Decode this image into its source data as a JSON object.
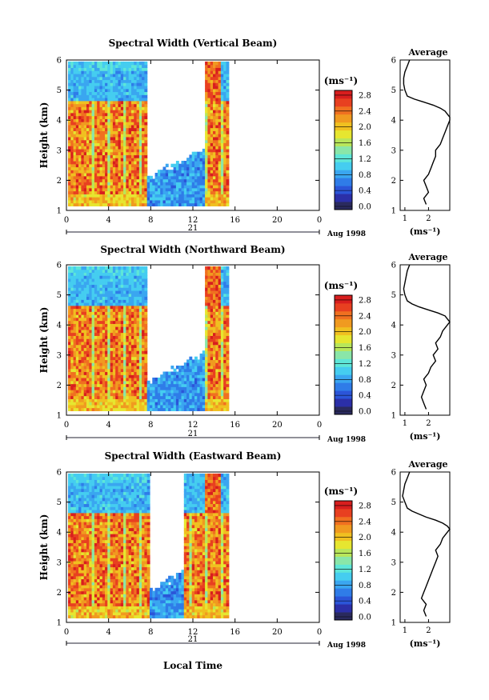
{
  "chart_data": [
    {
      "type": "heatmap",
      "title": "Spectral Width (Vertical Beam)",
      "ylabel": "Height (km)",
      "ylim": [
        1,
        6
      ],
      "yticks": [
        "1",
        "2",
        "3",
        "4",
        "5",
        "6"
      ],
      "xlim": [
        0,
        24
      ],
      "xticks": [
        "0",
        "4",
        "8",
        "12",
        "16",
        "20",
        "0"
      ],
      "date_day": "21",
      "date_label": "Aug 1998",
      "colorbar": {
        "unit": "(ms⁻¹)",
        "ticks": [
          "2.8",
          "2.4",
          "2.0",
          "1.6",
          "1.2",
          "0.8",
          "0.4",
          "0.0"
        ],
        "range": [
          0,
          3.0
        ]
      },
      "data_gap_hours": [
        7.6,
        13.0
      ],
      "data_end_hour": 15.3,
      "cloud_top_km": 4.6,
      "average_profile": {
        "title": "Average",
        "xlabel": "(ms⁻¹)",
        "xticks": [
          "1",
          "2"
        ],
        "xlim": [
          0.8,
          2.9
        ],
        "height_km": [
          1.2,
          1.4,
          1.6,
          1.8,
          2.0,
          2.2,
          2.4,
          2.6,
          2.8,
          3.0,
          3.2,
          3.4,
          3.6,
          3.8,
          4.0,
          4.1,
          4.2,
          4.3,
          4.4,
          4.5,
          4.6,
          4.7,
          4.8,
          5.0,
          5.2,
          5.4,
          5.6,
          5.8,
          6.0
        ],
        "width_ms": [
          1.9,
          1.8,
          2.0,
          1.9,
          1.8,
          2.0,
          2.1,
          2.2,
          2.3,
          2.3,
          2.5,
          2.6,
          2.7,
          2.8,
          2.9,
          2.9,
          2.8,
          2.7,
          2.5,
          2.2,
          1.8,
          1.4,
          1.1,
          1.0,
          0.95,
          0.95,
          1.0,
          1.1,
          1.2
        ]
      }
    },
    {
      "type": "heatmap",
      "title": "Spectral Width (Northward Beam)",
      "ylabel": "Height (km)",
      "ylim": [
        1,
        6
      ],
      "yticks": [
        "1",
        "2",
        "3",
        "4",
        "5",
        "6"
      ],
      "xlim": [
        0,
        24
      ],
      "xticks": [
        "0",
        "4",
        "8",
        "12",
        "16",
        "20",
        "0"
      ],
      "date_day": "21",
      "date_label": "Aug 1998",
      "colorbar": {
        "unit": "(ms⁻¹)",
        "ticks": [
          "2.8",
          "2.4",
          "2.0",
          "1.6",
          "1.2",
          "0.8",
          "0.4",
          "0.0"
        ],
        "range": [
          0,
          3.0
        ]
      },
      "data_gap_hours": [
        7.6,
        13.0
      ],
      "data_end_hour": 15.3,
      "cloud_top_km": 4.6,
      "average_profile": {
        "title": "Average",
        "xlabel": "(ms⁻¹)",
        "xticks": [
          "1",
          "2"
        ],
        "xlim": [
          0.8,
          2.9
        ],
        "height_km": [
          1.2,
          1.4,
          1.6,
          1.8,
          2.0,
          2.2,
          2.4,
          2.6,
          2.8,
          3.0,
          3.2,
          3.4,
          3.6,
          3.8,
          4.0,
          4.1,
          4.2,
          4.3,
          4.4,
          4.5,
          4.6,
          4.7,
          4.8,
          5.0,
          5.2,
          5.4,
          5.6,
          5.8,
          6.0
        ],
        "width_ms": [
          1.9,
          1.8,
          1.7,
          1.8,
          1.9,
          1.8,
          2.0,
          2.1,
          2.3,
          2.2,
          2.4,
          2.3,
          2.5,
          2.6,
          2.8,
          2.9,
          2.8,
          2.7,
          2.4,
          2.0,
          1.6,
          1.3,
          1.1,
          1.0,
          0.95,
          1.0,
          1.05,
          1.1,
          1.2
        ]
      }
    },
    {
      "type": "heatmap",
      "title": "Spectral Width (Eastward Beam)",
      "ylabel": "Height (km)",
      "ylim": [
        1,
        6
      ],
      "yticks": [
        "1",
        "2",
        "3",
        "4",
        "5",
        "6"
      ],
      "xlim": [
        0,
        24
      ],
      "xticks": [
        "0",
        "4",
        "8",
        "12",
        "16",
        "20",
        "0"
      ],
      "date_day": "21",
      "date_label": "Aug 1998",
      "xlabel": "Local Time",
      "colorbar": {
        "unit": "(ms⁻¹)",
        "ticks": [
          "2.8",
          "2.4",
          "2.0",
          "1.6",
          "1.2",
          "0.8",
          "0.4",
          "0.0"
        ],
        "range": [
          0,
          3.0
        ]
      },
      "data_gap_hours": [
        7.8,
        11.0
      ],
      "data_end_hour": 15.3,
      "cloud_top_km": 4.6,
      "average_profile": {
        "title": "Average",
        "xlabel": "(ms⁻¹)",
        "xticks": [
          "1",
          "2"
        ],
        "xlim": [
          0.8,
          2.9
        ],
        "height_km": [
          1.2,
          1.4,
          1.6,
          1.8,
          2.0,
          2.2,
          2.4,
          2.6,
          2.8,
          3.0,
          3.2,
          3.4,
          3.6,
          3.8,
          4.0,
          4.1,
          4.2,
          4.3,
          4.4,
          4.5,
          4.6,
          4.7,
          4.8,
          5.0,
          5.2,
          5.4,
          5.6,
          5.8,
          6.0
        ],
        "width_ms": [
          1.9,
          1.8,
          1.9,
          1.7,
          1.8,
          1.9,
          2.0,
          2.1,
          2.2,
          2.3,
          2.4,
          2.3,
          2.5,
          2.6,
          2.8,
          2.9,
          2.8,
          2.6,
          2.3,
          1.9,
          1.6,
          1.3,
          1.1,
          1.0,
          0.9,
          0.95,
          1.0,
          1.1,
          1.2
        ]
      }
    }
  ]
}
